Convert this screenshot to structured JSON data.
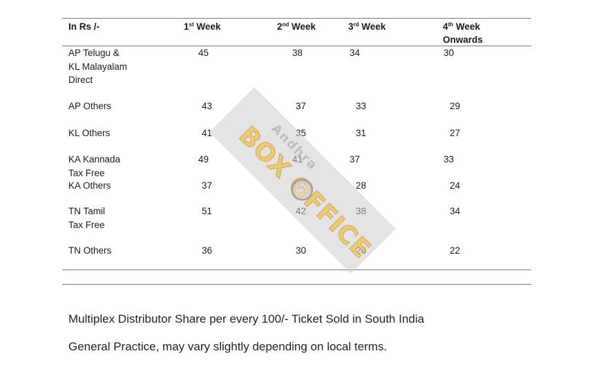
{
  "table": {
    "header": {
      "label": "In Rs /-",
      "weeks": [
        {
          "num": "1",
          "sup": "st",
          "text": " Week"
        },
        {
          "num": "2",
          "sup": "nd",
          "text": " Week"
        },
        {
          "num": "3",
          "sup": "rd",
          "text": " Week"
        },
        {
          "num": "4",
          "sup": "th",
          "text": " Week",
          "line2": "Onwards"
        }
      ]
    },
    "rows": [
      {
        "region": [
          "AP Telugu &",
          "KL Malayalam",
          "Direct"
        ],
        "values": [
          "45",
          "38",
          "34",
          "30"
        ]
      },
      {
        "region": [
          "AP Others"
        ],
        "values": [
          "43",
          "37",
          "33",
          "29"
        ]
      },
      {
        "region": [
          "KL Others"
        ],
        "values": [
          "41",
          "35",
          "31",
          "27"
        ]
      },
      {
        "region": [
          "KA Kannada",
          "Tax Free"
        ],
        "values": [
          "49",
          "41",
          "37",
          "33"
        ]
      },
      {
        "region": [
          "KA Others"
        ],
        "values": [
          "37",
          "32",
          "28",
          "24"
        ]
      },
      {
        "region": [
          "TN Tamil",
          "Tax Free"
        ],
        "values": [
          "51",
          "42",
          "38",
          "34"
        ]
      },
      {
        "region": [
          "TN Others"
        ],
        "values": [
          "36",
          "30",
          "26",
          "22"
        ]
      }
    ]
  },
  "notes": {
    "line1": "Multiplex Distributor Share  per every 100/- Ticket Sold in South India",
    "line2": "General Practice,  may vary slightly depending on local terms."
  },
  "watermark": {
    "top_text": "Andhra",
    "main_text": "BOX OFFICE"
  }
}
